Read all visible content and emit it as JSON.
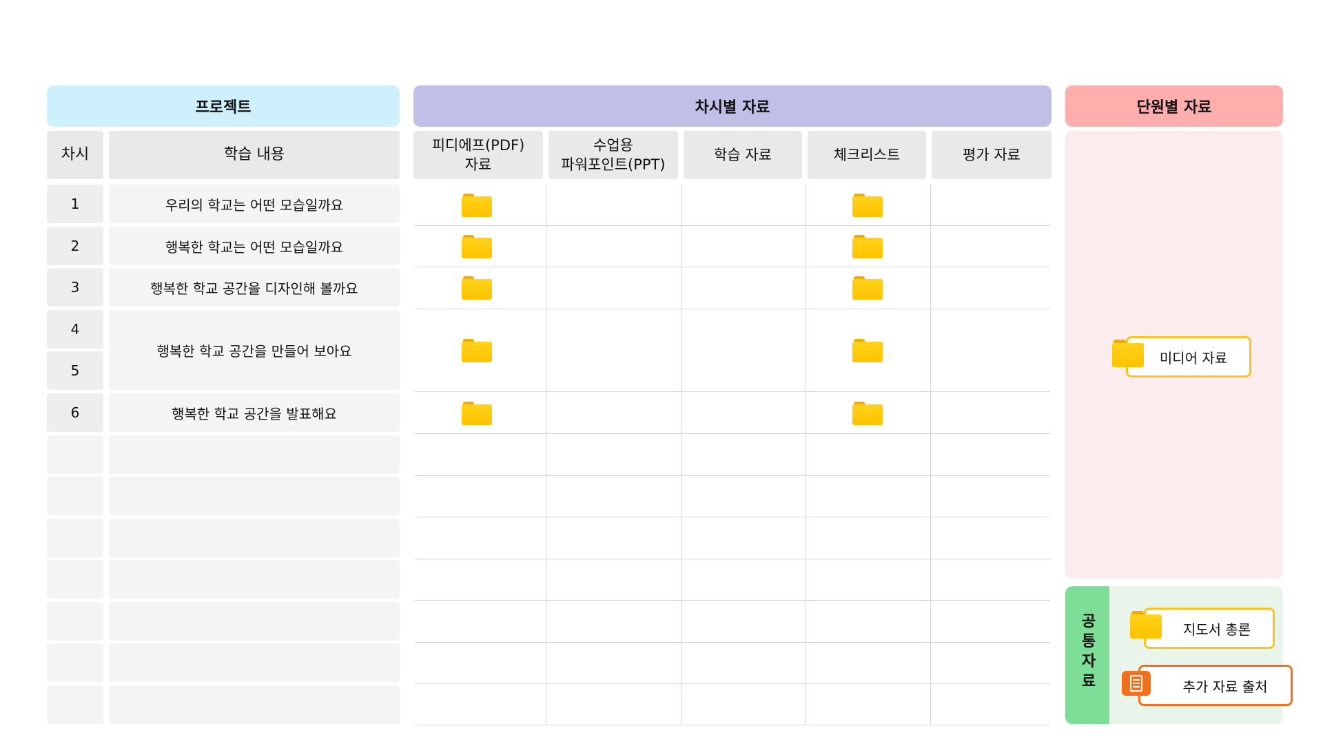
{
  "sections": {
    "project": "프로젝트",
    "lesson_materials": "차시별 자료",
    "unit_materials": "단원별 자료"
  },
  "project_columns": {
    "lesson": "차시",
    "content": "학습 내용"
  },
  "material_columns": [
    "피디에프(PDF)\n자료",
    "수업용\n파워포인트(PPT)",
    "학습 자료",
    "체크리스트",
    "평가 자료"
  ],
  "lessons": [
    {
      "number": "1",
      "content": "우리의 학교는 어떤 모습일까요"
    },
    {
      "number": "2",
      "content": "행복한 학교는 어떤 모습일까요"
    },
    {
      "number": "3",
      "content": "행복한 학교 공간을 디자인해 볼까요"
    },
    {
      "number": "4",
      "content": "행복한 학교 공간을 만들어 보아요"
    },
    {
      "number": "5",
      "content": ""
    },
    {
      "number": "6",
      "content": "행복한 학교 공간을 발표해요"
    }
  ],
  "unit_items": {
    "media": "미디어 자료"
  },
  "common": {
    "title": "공통 자료",
    "guide": "지도서 총론",
    "sources": "추가 자료 출처"
  },
  "icons": {
    "material_folder": "folder-icon",
    "sources": "document-icon"
  },
  "colors": {
    "project_header": "#cdf0fc",
    "lesson_header": "#c0bfe8",
    "unit_header": "#ffaeae",
    "unit_panel": "#fbeded",
    "common_tab": "#7edd97",
    "common_panel": "#e9f5ea",
    "folder": "#ffc400",
    "accent_orange": "#f2701c"
  }
}
